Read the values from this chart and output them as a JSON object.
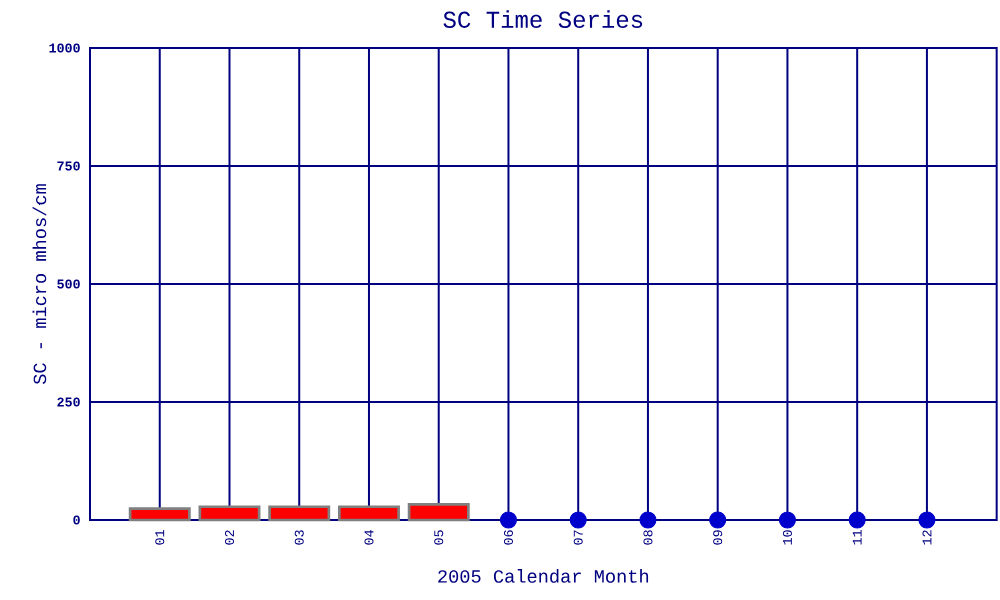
{
  "chart_data": {
    "type": "bar",
    "title": "SC Time Series",
    "xlabel": "2005 Calendar Month",
    "ylabel": "SC - micro mhos/cm",
    "categories": [
      "01",
      "02",
      "03",
      "04",
      "05",
      "06",
      "07",
      "08",
      "09",
      "10",
      "11",
      "12"
    ],
    "series": [
      {
        "color": "#ff0000",
        "values": [
          24,
          28,
          28,
          28,
          33,
          null,
          null,
          null,
          null,
          null,
          null,
          null
        ]
      },
      {
        "type": "scatter",
        "color": "#0000cc",
        "marker": "circle",
        "values": [
          null,
          null,
          null,
          null,
          null,
          0,
          0,
          0,
          0,
          0,
          0,
          0
        ]
      }
    ],
    "ylim": [
      0,
      1000
    ],
    "yticks": [
      0,
      250,
      500,
      750,
      1000
    ],
    "grid": true
  }
}
